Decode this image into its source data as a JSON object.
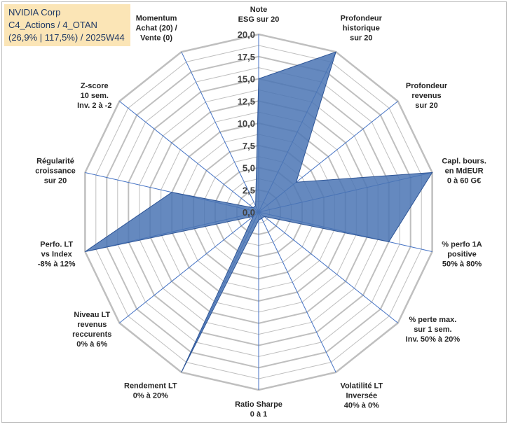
{
  "info": {
    "line1": "NVIDIA Corp",
    "line2": "C4_Actions / 4_OTAN",
    "line3": "(26,9% | 117,5%) / 2025W44"
  },
  "chart_data": {
    "type": "radar",
    "title": "",
    "r_range": [
      0,
      20
    ],
    "r_ticks": [
      "0,0",
      "2,5",
      "5,0",
      "7,5",
      "10,0",
      "12,5",
      "15,0",
      "17,5",
      "20,0"
    ],
    "grid": true,
    "axes": [
      {
        "lines": [
          "Note",
          "ESG sur 20"
        ]
      },
      {
        "lines": [
          "Profondeur",
          "historique",
          "sur 20"
        ]
      },
      {
        "lines": [
          "Profondeur",
          "revenus",
          "sur 20"
        ]
      },
      {
        "lines": [
          "Capl. bours.",
          "en MdEUR",
          "0 à 60 G€"
        ]
      },
      {
        "lines": [
          "% perfo 1A",
          "positive",
          "50% à 80%"
        ]
      },
      {
        "lines": [
          "% perte max.",
          "sur 1 sem.",
          "Inv. 50% à 20%"
        ]
      },
      {
        "lines": [
          "Volatilité LT",
          "Inversée",
          "40% à 0%"
        ]
      },
      {
        "lines": [
          "Ratio Sharpe",
          "0 à 1"
        ]
      },
      {
        "lines": [
          "Rendement LT",
          "0% à 20%"
        ]
      },
      {
        "lines": [
          "Niveau LT",
          "revenus",
          "reccurents",
          "0% à 6%"
        ]
      },
      {
        "lines": [
          "Perfo. LT",
          "vs Index",
          "-8% à 12%"
        ]
      },
      {
        "lines": [
          "Régularité",
          "croissance",
          "sur 20"
        ]
      },
      {
        "lines": [
          "Z-score",
          "10 sem.",
          "Inv. 2 à -2"
        ]
      },
      {
        "lines": [
          "Momentum",
          "Achat (20) /",
          "Vente (0)"
        ]
      }
    ],
    "series": [
      {
        "values": [
          15,
          20,
          5.4,
          20,
          15,
          0.8,
          0.8,
          0.9,
          20,
          0.8,
          20,
          10,
          0.8,
          0.8
        ]
      }
    ],
    "colors": {
      "fill": "#4a74b4",
      "stroke": "#2e5596",
      "spoke": "#4472c4",
      "grid": "#bfbfbf"
    }
  }
}
